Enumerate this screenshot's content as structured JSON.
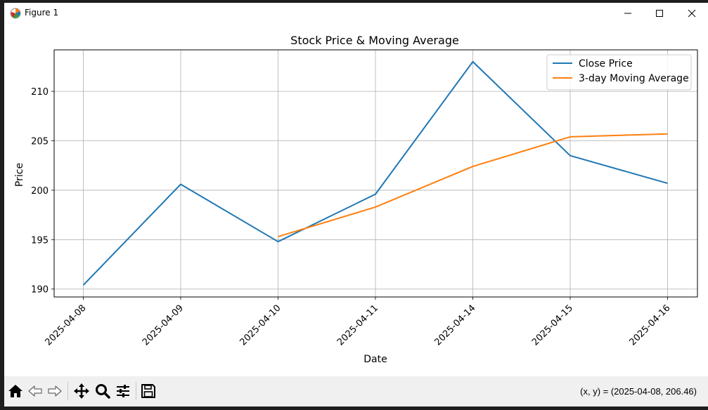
{
  "window": {
    "title": "Figure 1",
    "minimize_symbol": "—",
    "maximize_symbol": "☐",
    "close_symbol": "✕"
  },
  "toolbar": {
    "buttons": [
      {
        "name": "home-button",
        "icon": "home-icon"
      },
      {
        "name": "back-button",
        "icon": "arrow-left-icon"
      },
      {
        "name": "forward-button",
        "icon": "arrow-right-icon"
      },
      {
        "name": "pan-button",
        "icon": "move-icon"
      },
      {
        "name": "zoom-button",
        "icon": "magnifier-icon"
      },
      {
        "name": "configure-subplots-button",
        "icon": "sliders-icon"
      },
      {
        "name": "save-button",
        "icon": "floppy-disk-icon"
      }
    ],
    "coords_text": "(x, y) = (2025-04-08, 206.46)"
  },
  "chart_data": {
    "type": "line",
    "title": "Stock Price & Moving Average",
    "xlabel": "Date",
    "ylabel": "Price",
    "categories": [
      "2025-04-08",
      "2025-04-09",
      "2025-04-10",
      "2025-04-11",
      "2025-04-14",
      "2025-04-15",
      "2025-04-16"
    ],
    "yticks": [
      190,
      195,
      200,
      205,
      210
    ],
    "ylim": [
      189.2,
      214.2
    ],
    "grid": true,
    "legend_position": "top-right",
    "series": [
      {
        "name": "Close Price",
        "color": "#1f77b4",
        "values": [
          190.4,
          200.6,
          194.8,
          199.6,
          213.0,
          203.5,
          200.7
        ]
      },
      {
        "name": "3-day Moving Average",
        "color": "#ff7f0e",
        "values": [
          null,
          null,
          195.3,
          198.3,
          202.4,
          205.4,
          205.7
        ]
      }
    ]
  }
}
